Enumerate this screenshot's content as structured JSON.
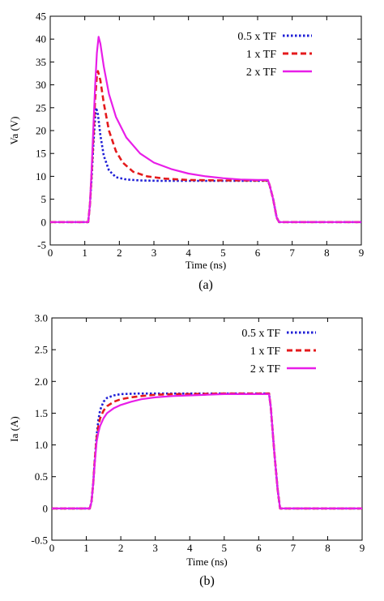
{
  "chart_data": [
    {
      "type": "line",
      "caption": "(a)",
      "xlabel": "Time (ns)",
      "ylabel": "Va (V)",
      "xlim": [
        0,
        9
      ],
      "ylim": [
        -5,
        45
      ],
      "xticks": [
        0,
        1,
        2,
        3,
        4,
        5,
        6,
        7,
        8,
        9
      ],
      "yticks": [
        -5,
        0,
        5,
        10,
        15,
        20,
        25,
        30,
        35,
        40,
        45
      ],
      "ytick_labels": [
        "-5",
        "0",
        "5",
        "10",
        "15",
        "20",
        "25",
        "30",
        "35",
        "40",
        "45"
      ],
      "grid": false,
      "legend_position": "top-right",
      "series": [
        {
          "name": "0.5 x TF",
          "color": "#1f1fd6",
          "style": "dotted",
          "x": [
            0,
            1.1,
            1.15,
            1.2,
            1.25,
            1.3,
            1.33,
            1.38,
            1.45,
            1.55,
            1.7,
            1.9,
            2.2,
            2.6,
            3.2,
            4.0,
            5.0,
            6.0,
            6.3,
            6.35,
            6.45,
            6.55,
            6.62,
            7,
            8,
            9
          ],
          "y": [
            0,
            0,
            4,
            10,
            17,
            23,
            25,
            23.5,
            19,
            14.5,
            11.3,
            9.8,
            9.3,
            9.1,
            9.0,
            9.0,
            9.0,
            9.0,
            9.0,
            8,
            5,
            1,
            0,
            0,
            0,
            0
          ]
        },
        {
          "name": "1 x TF",
          "color": "#e41a1c",
          "style": "dashed",
          "x": [
            0,
            1.1,
            1.15,
            1.2,
            1.25,
            1.3,
            1.35,
            1.38,
            1.45,
            1.55,
            1.7,
            1.9,
            2.1,
            2.4,
            2.8,
            3.3,
            4.0,
            5.0,
            6.0,
            6.3,
            6.35,
            6.45,
            6.55,
            6.62,
            7,
            8,
            9
          ],
          "y": [
            0,
            0,
            4,
            11,
            19,
            27,
            32,
            33,
            31,
            26,
            20,
            15.5,
            13,
            11,
            10,
            9.5,
            9.2,
            9.1,
            9.1,
            9.1,
            8,
            5,
            1,
            0,
            0,
            0,
            0
          ]
        },
        {
          "name": "2 x TF",
          "color": "#e81ee8",
          "style": "solid",
          "x": [
            0,
            1.1,
            1.15,
            1.2,
            1.25,
            1.3,
            1.35,
            1.4,
            1.45,
            1.55,
            1.7,
            1.9,
            2.2,
            2.6,
            3.0,
            3.5,
            4.0,
            4.5,
            5.0,
            5.5,
            6.0,
            6.3,
            6.35,
            6.45,
            6.55,
            6.62,
            7,
            8,
            9
          ],
          "y": [
            0,
            0,
            4,
            12,
            21,
            30,
            37,
            40.5,
            39,
            34,
            28,
            23,
            18.5,
            15,
            13,
            11.6,
            10.6,
            10.0,
            9.6,
            9.3,
            9.2,
            9.2,
            8,
            5,
            1,
            0,
            0,
            0,
            0
          ]
        }
      ]
    },
    {
      "type": "line",
      "caption": "(b)",
      "xlabel": "Time (ns)",
      "ylabel": "Ia (A)",
      "xlim": [
        0,
        9
      ],
      "ylim": [
        -0.5,
        3.0
      ],
      "xticks": [
        0,
        1,
        2,
        3,
        4,
        5,
        6,
        7,
        8,
        9
      ],
      "yticks": [
        -0.5,
        0,
        0.5,
        1.0,
        1.5,
        2.0,
        2.5,
        3.0
      ],
      "ytick_labels": [
        "-0.5",
        "0",
        "0.5",
        "1.0",
        "1.5",
        "2.0",
        "2.5",
        "3.0"
      ],
      "grid": false,
      "legend_position": "top-right",
      "series": [
        {
          "name": "0.5 x TF",
          "color": "#1f1fd6",
          "style": "dotted",
          "x": [
            0,
            1.1,
            1.15,
            1.2,
            1.25,
            1.3,
            1.35,
            1.4,
            1.5,
            1.6,
            1.8,
            2.0,
            2.5,
            3.0,
            4.0,
            5.0,
            6.0,
            6.3,
            6.35,
            6.45,
            6.55,
            6.62,
            7,
            8,
            9
          ],
          "y": [
            0,
            0,
            0.1,
            0.4,
            0.8,
            1.15,
            1.4,
            1.55,
            1.68,
            1.74,
            1.78,
            1.8,
            1.81,
            1.81,
            1.81,
            1.81,
            1.81,
            1.81,
            1.6,
            0.9,
            0.3,
            0,
            0,
            0,
            0
          ]
        },
        {
          "name": "1 x TF",
          "color": "#e41a1c",
          "style": "dashed",
          "x": [
            0,
            1.1,
            1.15,
            1.2,
            1.25,
            1.3,
            1.35,
            1.4,
            1.5,
            1.6,
            1.8,
            2.0,
            2.3,
            2.6,
            3.0,
            3.5,
            4.0,
            5.0,
            6.0,
            6.3,
            6.35,
            6.45,
            6.55,
            6.62,
            7,
            8,
            9
          ],
          "y": [
            0,
            0,
            0.1,
            0.4,
            0.8,
            1.1,
            1.3,
            1.42,
            1.54,
            1.61,
            1.68,
            1.72,
            1.75,
            1.77,
            1.79,
            1.8,
            1.8,
            1.81,
            1.81,
            1.81,
            1.6,
            0.9,
            0.3,
            0,
            0,
            0,
            0
          ]
        },
        {
          "name": "2 x TF",
          "color": "#e81ee8",
          "style": "solid",
          "x": [
            0,
            1.1,
            1.15,
            1.2,
            1.25,
            1.3,
            1.35,
            1.4,
            1.5,
            1.6,
            1.8,
            2.0,
            2.3,
            2.6,
            3.0,
            3.5,
            4.0,
            4.5,
            5.0,
            6.0,
            6.3,
            6.35,
            6.45,
            6.55,
            6.62,
            7,
            8,
            9
          ],
          "y": [
            0,
            0,
            0.1,
            0.4,
            0.75,
            1.05,
            1.2,
            1.3,
            1.42,
            1.5,
            1.58,
            1.63,
            1.68,
            1.72,
            1.75,
            1.77,
            1.78,
            1.79,
            1.8,
            1.8,
            1.8,
            1.6,
            0.9,
            0.3,
            0,
            0,
            0,
            0
          ]
        }
      ]
    }
  ]
}
